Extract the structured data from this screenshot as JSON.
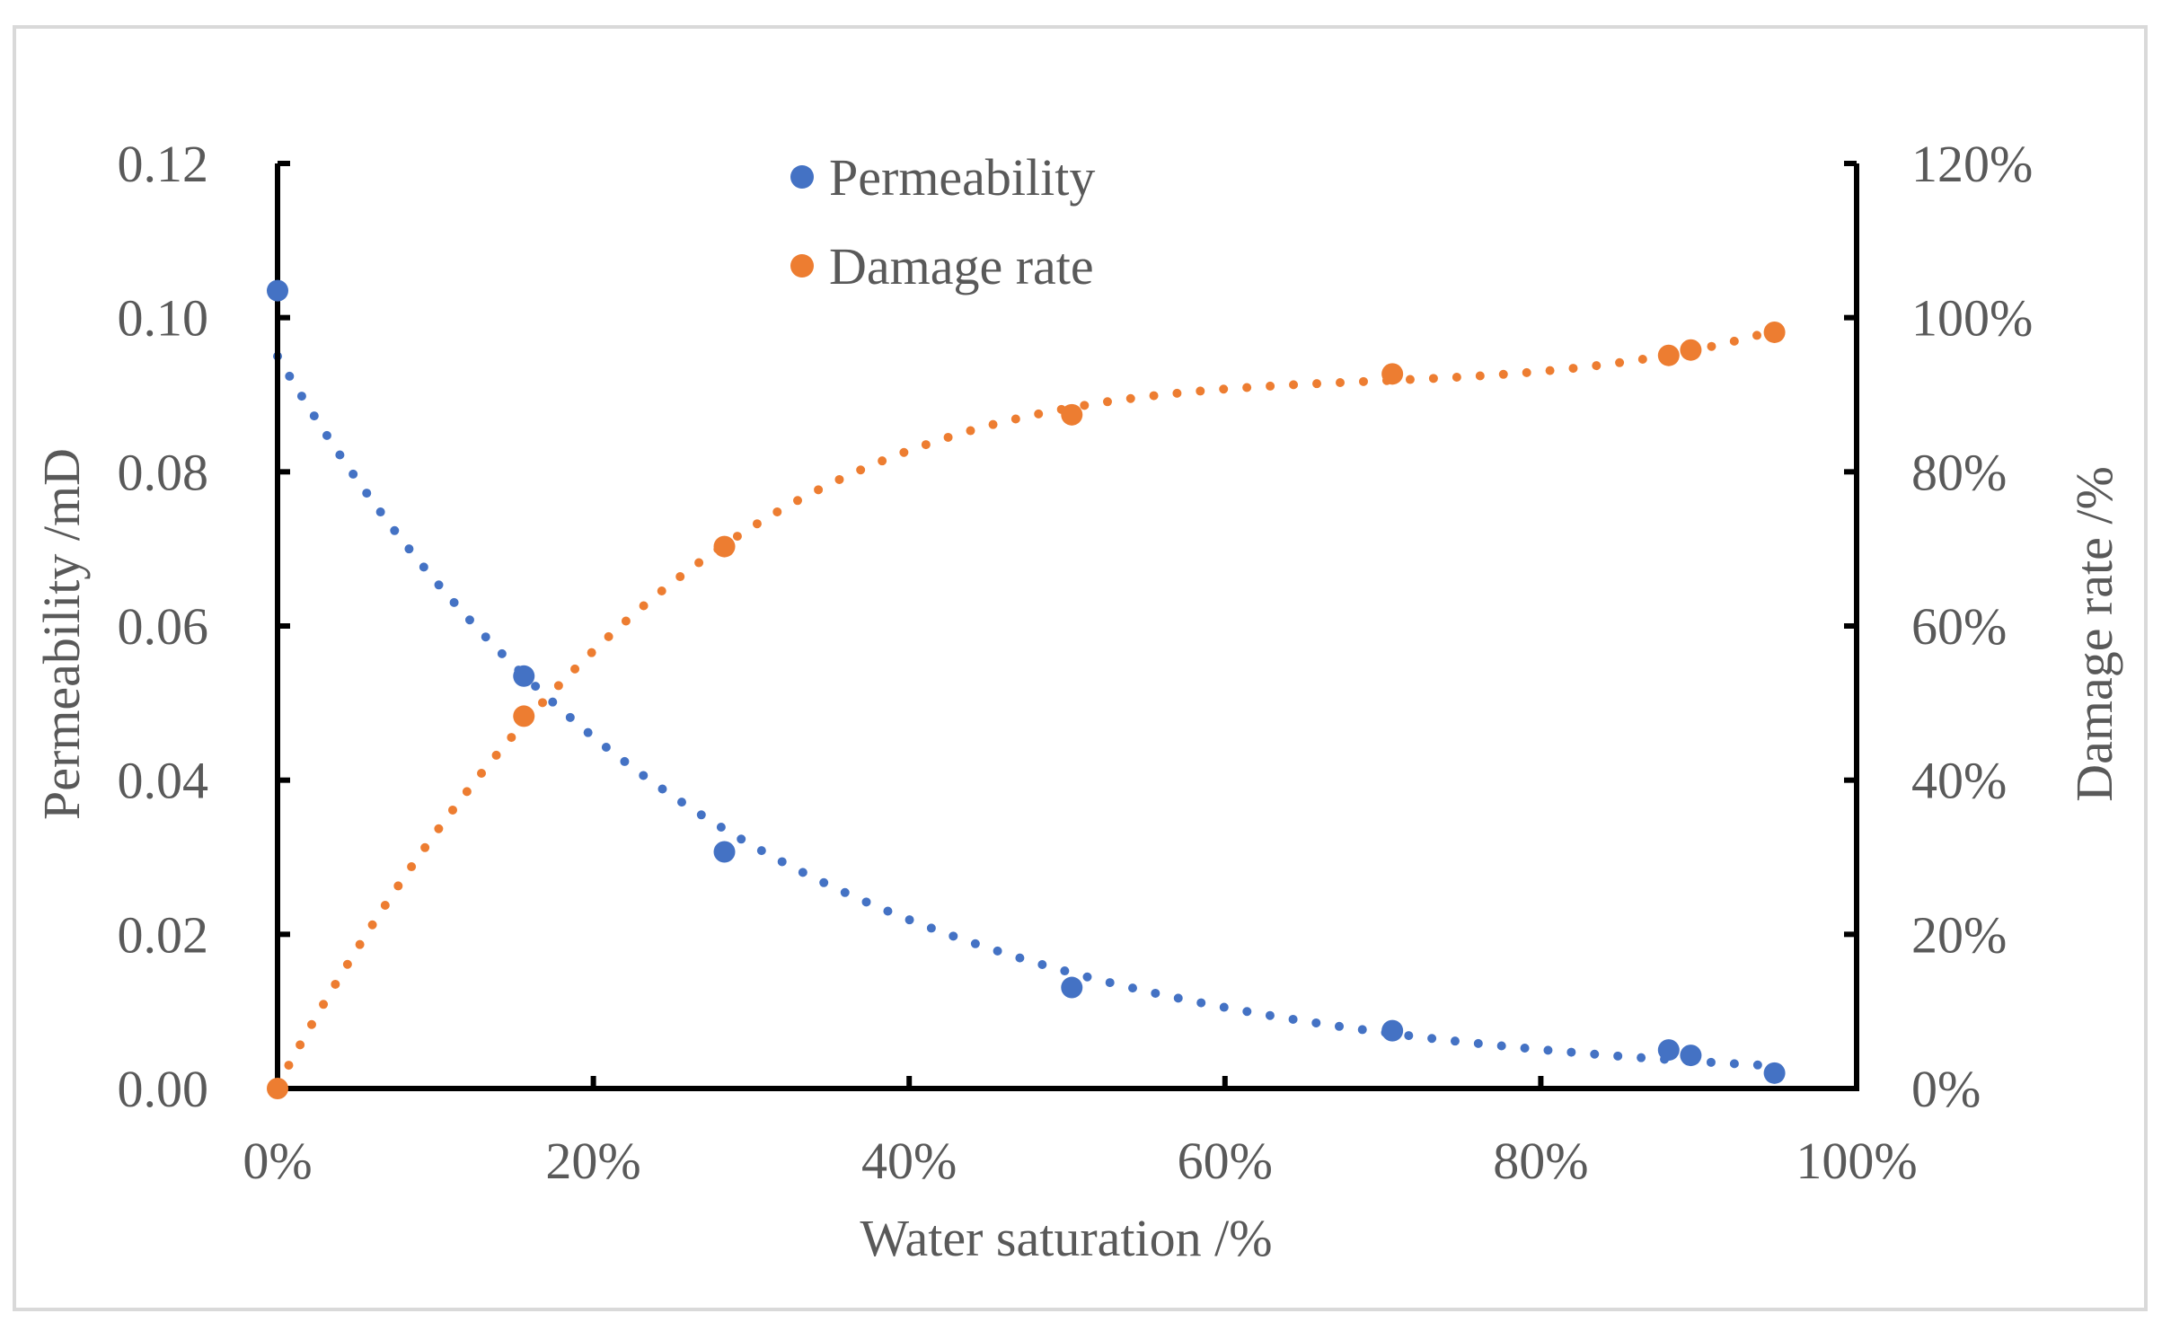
{
  "chart_data": {
    "type": "scatter",
    "title": "",
    "xlabel": "Water saturation /%",
    "ylabel_left": "Permeability /mD",
    "ylabel_right": "Damage rate /%",
    "xlim": [
      0,
      1
    ],
    "ylim_left": [
      0,
      0.12
    ],
    "ylim_right": [
      0,
      1.2
    ],
    "grid": false,
    "legend_position": "top-center",
    "x_ticks": [
      "0%",
      "20%",
      "40%",
      "60%",
      "80%",
      "100%"
    ],
    "y_left_ticks": [
      "0.00",
      "0.02",
      "0.04",
      "0.06",
      "0.08",
      "0.10",
      "0.12"
    ],
    "y_right_ticks": [
      "0%",
      "20%",
      "40%",
      "60%",
      "80%",
      "100%",
      "120%"
    ],
    "series": [
      {
        "name": "Permeability",
        "axis": "left",
        "color": "#4472c4",
        "x": [
          0.0,
          0.156,
          0.283,
          0.503,
          0.706,
          0.881,
          0.895,
          0.948
        ],
        "y": [
          0.1035,
          0.0535,
          0.0307,
          0.0131,
          0.0075,
          0.005,
          0.0043,
          0.002
        ],
        "trendline": "exponential"
      },
      {
        "name": "Damage rate",
        "axis": "right",
        "color": "#ed7d31",
        "x": [
          0.0,
          0.156,
          0.283,
          0.503,
          0.706,
          0.881,
          0.895,
          0.948
        ],
        "y": [
          0.0,
          0.483,
          0.703,
          0.874,
          0.927,
          0.951,
          0.958,
          0.981
        ],
        "trendline": "polynomial"
      }
    ]
  }
}
